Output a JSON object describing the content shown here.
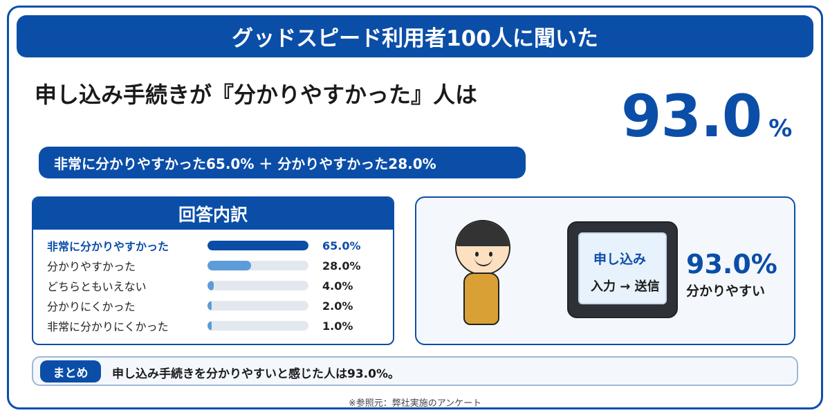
{
  "banner": {
    "title": "グッドスピード利用者100人に聞いた"
  },
  "headline": {
    "text": "申し込み手続きが『分かりやすかった』人は"
  },
  "main_stat": {
    "number": "93.0",
    "unit": "%"
  },
  "breakdown": {
    "text": "非常に分かりやすかった65.0% ＋ 分かりやすかった28.0%"
  },
  "panel": {
    "title": "回答内訳",
    "rows": [
      {
        "label": "非常に分かりやすかった",
        "value_text": "65.0%",
        "value": 65.0
      },
      {
        "label": "分かりやすかった",
        "value_text": "28.0%",
        "value": 28.0
      },
      {
        "label": "どちらともいえない",
        "value_text": "4.0%",
        "value": 4.0
      },
      {
        "label": "分かりにくかった",
        "value_text": "2.0%",
        "value": 2.0
      },
      {
        "label": "非常に分かりにくかった",
        "value_text": "1.0%",
        "value": 1.0
      }
    ]
  },
  "illustration": {
    "screen_title": "申し込み",
    "screen_sub": "入力 → 送信",
    "pct": "93.0%",
    "caption": "分かりやすい"
  },
  "summary": {
    "tag": "まとめ",
    "text": "申し込み手続きを分かりやすいと感じた人は93.0%。"
  },
  "source": "※参照元：弊社実施のアンケート",
  "colors": {
    "primary": "#0b4ea8",
    "bar_secondary": "#5d9bd9",
    "track": "#e3e8ef"
  }
}
